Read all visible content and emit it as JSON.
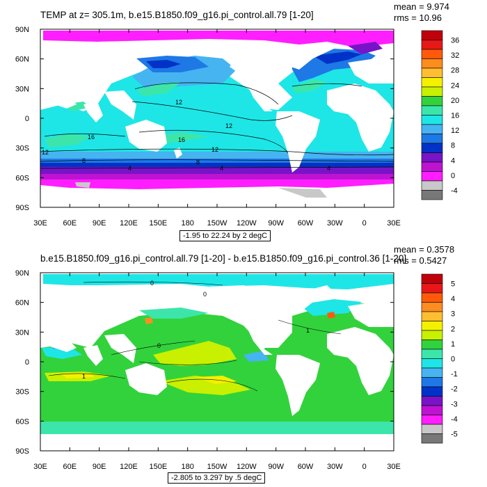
{
  "panels": [
    {
      "title": "TEMP at z= 305.1m, b.e15.B1850.f09_g16.pi_control.all.79 [1-20]",
      "stats": {
        "mean": "mean = 9.974",
        "rms": "rms = 10.96"
      },
      "subtitle": "-1.95 to 22.24 by 2 degC",
      "colorbar": {
        "labels": [
          "36",
          "32",
          "28",
          "24",
          "20",
          "16",
          "12",
          "8",
          "4",
          "0",
          "-4"
        ],
        "colors": [
          "#c0000a",
          "#e81818",
          "#ff5a0a",
          "#ff8c1e",
          "#ffbe32",
          "#f5f000",
          "#c8f000",
          "#32d23c",
          "#3ce6aa",
          "#1ee6e6",
          "#46b4f0",
          "#1e78e6",
          "#0032c8",
          "#7814c8",
          "#be14d2",
          "#ff1eff",
          "#c8c8c8",
          "#787878"
        ]
      },
      "contour_labels": [
        "12",
        "12",
        "16",
        "16",
        "12",
        "12",
        "8",
        "8",
        "4",
        "4",
        "4"
      ]
    },
    {
      "title": "b.e15.B1850.f09_g16.pi_control.all.79 [1-20] - b.e15.B1850.f09_g16.pi_control.36 [1-20]",
      "stats": {
        "mean": "mean = 0.3578",
        "rms": "rms = 0.5427"
      },
      "subtitle": "-2.805 to 3.297 by .5 degC",
      "colorbar": {
        "labels": [
          "5",
          "4",
          "3",
          "2",
          "1",
          "0",
          "-1",
          "-2",
          "-3",
          "-4",
          "-5"
        ],
        "colors": [
          "#c0000a",
          "#e81818",
          "#ff5a0a",
          "#ff8c1e",
          "#ffbe32",
          "#f5f000",
          "#c8f000",
          "#32d23c",
          "#3ce6aa",
          "#1ee6e6",
          "#46b4f0",
          "#1e78e6",
          "#0032c8",
          "#7814c8",
          "#be14d2",
          "#ff1eff",
          "#c8c8c8",
          "#787878"
        ]
      },
      "contour_labels": [
        "0",
        "0",
        "0",
        "1",
        "1"
      ]
    }
  ],
  "chart_data": [
    {
      "type": "heatmap",
      "title": "TEMP at z= 305.1m, b.e15.B1850.f09_g16.pi_control.all.79 [1-20]",
      "x_tick_labels": [
        "30E",
        "60E",
        "90E",
        "120E",
        "150E",
        "180",
        "150W",
        "120W",
        "90W",
        "60W",
        "30W",
        "0",
        "30E"
      ],
      "y_tick_labels": [
        "90N",
        "60N",
        "30N",
        "0",
        "30S",
        "60S",
        "90S"
      ],
      "lon_range": [
        30,
        390
      ],
      "lat_range": [
        -90,
        90
      ],
      "colorbar_range": [
        -4,
        36
      ],
      "units": "degC",
      "field_range": [
        -1.95,
        22.24
      ],
      "contour_interval": 2,
      "mean": 9.974,
      "rms": 10.96
    },
    {
      "type": "heatmap",
      "title": "b.e15.B1850.f09_g16.pi_control.all.79 [1-20] - b.e15.B1850.f09_g16.pi_control.36 [1-20]",
      "x_tick_labels": [
        "30E",
        "60E",
        "90E",
        "120E",
        "150E",
        "180",
        "150W",
        "120W",
        "90W",
        "60W",
        "30W",
        "0",
        "30E"
      ],
      "y_tick_labels": [
        "90N",
        "60N",
        "30N",
        "0",
        "30S",
        "60S",
        "90S"
      ],
      "lon_range": [
        30,
        390
      ],
      "lat_range": [
        -90,
        90
      ],
      "colorbar_range": [
        -5,
        5
      ],
      "units": "degC",
      "field_range": [
        -2.805,
        3.297
      ],
      "contour_interval": 0.5,
      "mean": 0.3578,
      "rms": 0.5427
    }
  ]
}
